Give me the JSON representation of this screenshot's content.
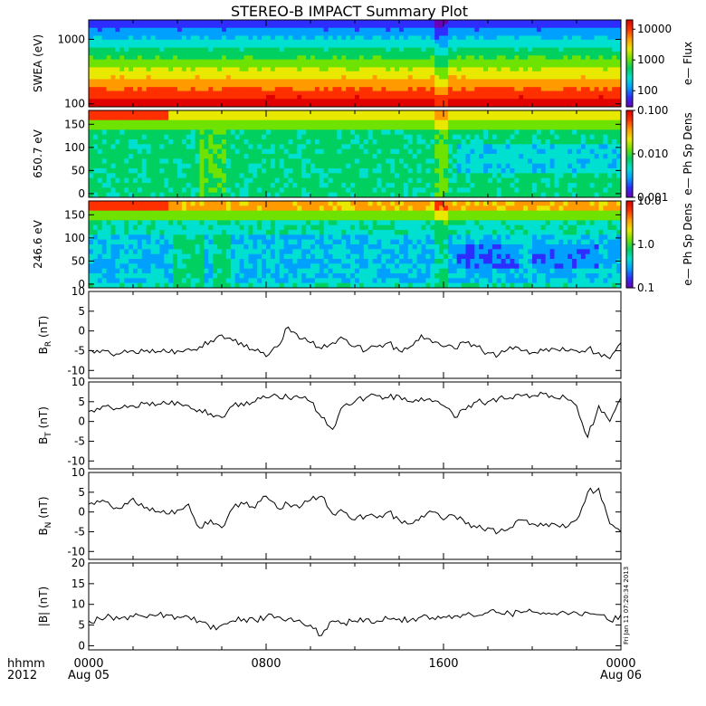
{
  "title": "STEREO-B IMPACT Summary Plot",
  "colors": {
    "axis": "#000000",
    "line": "#000000",
    "colormap": [
      "#6a00b8",
      "#2d2dff",
      "#00a0ff",
      "#00e0d0",
      "#00d060",
      "#6ee200",
      "#e8e800",
      "#ff9a00",
      "#ff3000",
      "#e00000"
    ]
  },
  "time_axis": {
    "prefix_top": "hhmm",
    "prefix_bottom": "2012",
    "ticks": [
      {
        "hour": 0,
        "top": "0000",
        "bottom": "Aug 05"
      },
      {
        "hour": 8,
        "top": "0800",
        "bottom": ""
      },
      {
        "hour": 16,
        "top": "1600",
        "bottom": ""
      },
      {
        "hour": 24,
        "top": "0000",
        "bottom": "Aug 06"
      }
    ]
  },
  "footer_stamp": "Fri Jan 11 07:20:34 2013",
  "chart_data": [
    {
      "type": "heatmap",
      "id": "swea",
      "ylabel": "SWEA (eV)",
      "yscale": "log",
      "ylim": [
        90,
        2000
      ],
      "yticks": [
        {
          "v": 100,
          "label": "100"
        },
        {
          "v": 1000,
          "label": "1000"
        }
      ],
      "colorbar": {
        "label": "e— Flux",
        "scale": "log",
        "range": [
          30,
          20000
        ],
        "ticks": [
          {
            "v": 100,
            "label": "100"
          },
          {
            "v": 1000,
            "label": "1000"
          },
          {
            "v": 10000,
            "label": "10000"
          }
        ]
      }
    },
    {
      "type": "heatmap",
      "id": "pad650",
      "ylabel": "650.7 eV",
      "yscale": "linear",
      "ylim": [
        -8,
        180
      ],
      "yticks": [
        {
          "v": 0,
          "label": "0"
        },
        {
          "v": 50,
          "label": "50"
        },
        {
          "v": 100,
          "label": "100"
        },
        {
          "v": 150,
          "label": "150"
        }
      ],
      "colorbar": {
        "label": "e— Ph Sp Dens",
        "scale": "log",
        "range": [
          0.001,
          0.1
        ],
        "ticks": [
          {
            "v": 0.001,
            "label": "0.001"
          },
          {
            "v": 0.01,
            "label": "0.010"
          },
          {
            "v": 0.1,
            "label": "0.100"
          }
        ]
      }
    },
    {
      "type": "heatmap",
      "id": "pad246",
      "ylabel": "246.6 eV",
      "yscale": "linear",
      "ylim": [
        -8,
        180
      ],
      "yticks": [
        {
          "v": 0,
          "label": "0"
        },
        {
          "v": 50,
          "label": "50"
        },
        {
          "v": 100,
          "label": "100"
        },
        {
          "v": 150,
          "label": "150"
        }
      ],
      "colorbar": {
        "label": "e— Ph Sp Dens",
        "scale": "log",
        "range": [
          0.1,
          10
        ],
        "ticks": [
          {
            "v": 0.1,
            "label": "0.1"
          },
          {
            "v": 1,
            "label": "1.0"
          },
          {
            "v": 10,
            "label": "10.0"
          }
        ]
      }
    },
    {
      "type": "line",
      "id": "br",
      "ylabel": "B",
      "ylabel_sub": "R",
      "ylabel_unit": "(nT)",
      "ylim": [
        -12,
        10
      ],
      "yticks": [
        -10,
        -5,
        0,
        5,
        10
      ],
      "x_hours": [
        0,
        0.5,
        1,
        1.5,
        2,
        2.5,
        3,
        3.5,
        4,
        4.5,
        5,
        5.5,
        6,
        6.5,
        7,
        7.5,
        8,
        8.5,
        9,
        9.5,
        10,
        10.5,
        11,
        11.5,
        12,
        12.5,
        13,
        13.5,
        14,
        14.5,
        15,
        15.5,
        16,
        16.5,
        17,
        17.5,
        18,
        18.5,
        19,
        19.5,
        20,
        20.5,
        21,
        21.5,
        22,
        22.5,
        23,
        23.5,
        24
      ],
      "values": [
        -5,
        -5.5,
        -5.8,
        -5.5,
        -5,
        -5.2,
        -5.5,
        -5.3,
        -5,
        -4.5,
        -4,
        -2.5,
        -1,
        -2.5,
        -4,
        -5,
        -6.5,
        -4,
        1,
        -2,
        -3,
        -4.5,
        -3,
        -2,
        -4,
        -5,
        -4,
        -3,
        -5,
        -4,
        -1,
        -3,
        -4,
        -4.5,
        -3,
        -4,
        -5.5,
        -6,
        -4,
        -5,
        -5.5,
        -5,
        -4.5,
        -5,
        -5,
        -4.5,
        -5.5,
        -7,
        -3
      ]
    },
    {
      "type": "line",
      "id": "bt",
      "ylabel": "B",
      "ylabel_sub": "T",
      "ylabel_unit": "(nT)",
      "ylim": [
        -12,
        10
      ],
      "yticks": [
        -10,
        -5,
        0,
        5,
        10
      ],
      "x_hours": [
        0,
        0.5,
        1,
        1.5,
        2,
        2.5,
        3,
        3.5,
        4,
        4.5,
        5,
        5.5,
        6,
        6.5,
        7,
        7.5,
        8,
        8.5,
        9,
        9.5,
        10,
        10.5,
        11,
        11.5,
        12,
        12.5,
        13,
        13.5,
        14,
        14.5,
        15,
        15.5,
        16,
        16.5,
        17,
        17.5,
        18,
        18.5,
        19,
        19.5,
        20,
        20.5,
        21,
        21.5,
        22,
        22.5,
        23,
        23.5,
        24
      ],
      "values": [
        2.5,
        3,
        3.5,
        3.5,
        4,
        4.5,
        4,
        4.5,
        5,
        4,
        3,
        2,
        1,
        4,
        4,
        5,
        6,
        6.5,
        6,
        6,
        5,
        1,
        -2,
        4,
        5,
        6,
        6.5,
        6,
        6.5,
        5,
        6,
        5,
        4,
        1,
        3,
        5,
        5,
        6,
        6,
        6.5,
        6.5,
        7,
        6,
        6,
        4,
        -4,
        4,
        0,
        6
      ]
    },
    {
      "type": "line",
      "id": "bn",
      "ylabel": "B",
      "ylabel_sub": "N",
      "ylabel_unit": "(nT)",
      "ylim": [
        -12,
        10
      ],
      "yticks": [
        -10,
        -5,
        0,
        5,
        10
      ],
      "x_hours": [
        0,
        0.5,
        1,
        1.5,
        2,
        2.5,
        3,
        3.5,
        4,
        4.5,
        5,
        5.5,
        6,
        6.5,
        7,
        7.5,
        8,
        8.5,
        9,
        9.5,
        10,
        10.5,
        11,
        11.5,
        12,
        12.5,
        13,
        13.5,
        14,
        14.5,
        15,
        15.5,
        16,
        16.5,
        17,
        17.5,
        18,
        18.5,
        19,
        19.5,
        20,
        20.5,
        21,
        21.5,
        22,
        22.5,
        23,
        23.5,
        24
      ],
      "values": [
        2,
        2.5,
        1.5,
        1,
        3.5,
        1,
        0,
        -0.5,
        0.5,
        2,
        -4,
        -2,
        -4,
        1,
        2,
        1,
        4,
        1,
        2,
        1,
        3,
        4,
        -0.5,
        0,
        -2,
        -1,
        -1.5,
        0,
        -2,
        -3,
        -1,
        0,
        -2,
        -1,
        -3,
        -4,
        -4,
        -5,
        -4,
        -2,
        -3,
        -3.5,
        -3,
        -4,
        -2,
        5,
        6,
        -3,
        -5
      ]
    },
    {
      "type": "line",
      "id": "bmag",
      "ylabel": "|B| (nT)",
      "ylim": [
        -1,
        20
      ],
      "yticks": [
        0,
        5,
        10,
        15,
        20
      ],
      "x_hours": [
        0,
        0.5,
        1,
        1.5,
        2,
        2.5,
        3,
        3.5,
        4,
        4.5,
        5,
        5.5,
        6,
        6.5,
        7,
        7.5,
        8,
        8.5,
        9,
        9.5,
        10,
        10.5,
        11,
        11.5,
        12,
        12.5,
        13,
        13.5,
        14,
        14.5,
        15,
        15.5,
        16,
        16.5,
        17,
        17.5,
        18,
        18.5,
        19,
        19.5,
        20,
        20.5,
        21,
        21.5,
        22,
        22.5,
        23,
        23.5,
        24
      ],
      "values": [
        6,
        6.5,
        7,
        6.8,
        7,
        7,
        7.2,
        7.5,
        7,
        7,
        6,
        4,
        5,
        6,
        6.5,
        6.2,
        7,
        7,
        6.5,
        6.2,
        5,
        2.5,
        6,
        5.5,
        6,
        6.5,
        6,
        6.5,
        6.5,
        6.2,
        7,
        6.8,
        7,
        7.2,
        7.5,
        7.2,
        8,
        8,
        7.8,
        8,
        8.2,
        8,
        7.8,
        8,
        8,
        8,
        7.5,
        6,
        7.5
      ]
    }
  ]
}
